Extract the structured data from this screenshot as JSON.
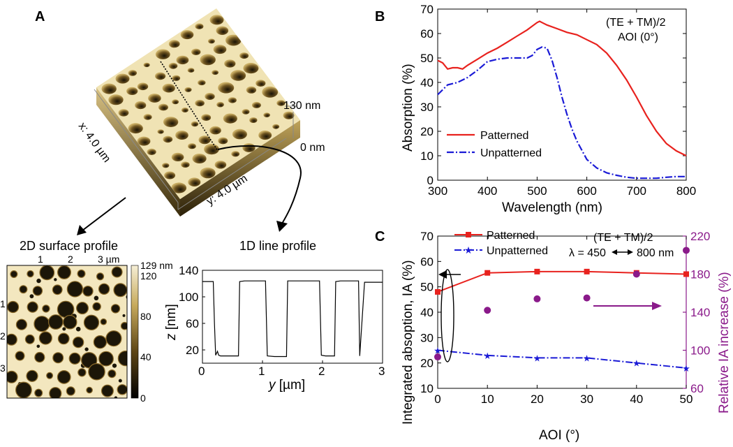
{
  "panel_a": {
    "label": "A",
    "afm_3d": {
      "x_label": "x: 4.0 µm",
      "y_label": "y: 4.0 µm",
      "z_top_label": "130 nm",
      "z_bottom_label": "0 nm"
    },
    "surface_2d": {
      "title": "2D surface profile",
      "top_ticks": [
        "1",
        "2",
        "3 µm"
      ],
      "left_ticks": [
        "1",
        "2",
        "3"
      ],
      "colorbar_ticks": [
        "129 nm",
        "120",
        "80",
        "40",
        "0"
      ]
    },
    "line_profile": {
      "title": "1D line profile",
      "xlabel_var": "y",
      "xlabel_unit": " [µm]",
      "ylabel_var": "z",
      "ylabel_unit": " [nm]",
      "xticks": [
        "0",
        "1",
        "2",
        "3"
      ],
      "yticks": [
        "140",
        "100",
        "60",
        "20"
      ]
    }
  },
  "panel_b": {
    "label": "B",
    "annotation_line1": "(TE + TM)/2",
    "annotation_line2": "AOI (0°)",
    "xlabel": "Wavelength (nm)",
    "ylabel": "Absorption (%)",
    "xticks": [
      "300",
      "400",
      "500",
      "600",
      "700",
      "800"
    ],
    "yticks": [
      "0",
      "10",
      "20",
      "30",
      "40",
      "50",
      "60",
      "70"
    ],
    "legend": [
      "Patterned",
      "Unpatterned"
    ]
  },
  "panel_c": {
    "label": "C",
    "annotation_line1": "(TE + TM)/2",
    "annotation_line2": "λ = 450",
    "annotation_line2b": "800 nm",
    "xlabel": "AOI (°)",
    "ylabel_left": "Integrated absoption, IA (%)",
    "ylabel_right": "Relative IA increase (%)",
    "xticks": [
      "0",
      "10",
      "20",
      "30",
      "40",
      "50"
    ],
    "yticks_left": [
      "10",
      "20",
      "30",
      "40",
      "50",
      "60",
      "70"
    ],
    "yticks_right": [
      "60",
      "100",
      "140",
      "180",
      "220"
    ],
    "legend": [
      "Patterned",
      "Unpatterned"
    ]
  },
  "colors": {
    "patterned": "#e8221e",
    "unpatterned": "#1a1ad6",
    "relative": "#8a1a8a",
    "afm_light": "#f4eccf",
    "afm_dark": "#1c1608"
  },
  "chart_data": [
    {
      "type": "line",
      "panel": "B",
      "xlabel": "Wavelength (nm)",
      "ylabel": "Absorption (%)",
      "xlim": [
        300,
        800
      ],
      "ylim": [
        0,
        70
      ],
      "grid": false,
      "legend_position": "lower-left",
      "series": [
        {
          "name": "Patterned",
          "color": "#e8221e",
          "style": "solid",
          "x": [
            300,
            310,
            320,
            330,
            340,
            350,
            360,
            380,
            400,
            420,
            440,
            460,
            480,
            490,
            500,
            505,
            510,
            520,
            540,
            560,
            580,
            600,
            620,
            640,
            660,
            680,
            700,
            720,
            740,
            760,
            780,
            800
          ],
          "y": [
            49,
            48,
            45.5,
            46,
            46,
            45.5,
            47,
            49.5,
            52,
            54,
            56.5,
            59,
            61.5,
            63,
            64.5,
            65,
            64.5,
            63.5,
            62,
            60.5,
            59.5,
            57.5,
            55.5,
            52,
            47,
            41,
            34,
            26.5,
            20,
            15,
            12,
            10
          ]
        },
        {
          "name": "Unpatterned",
          "color": "#1a1ad6",
          "style": "dashdot",
          "x": [
            300,
            310,
            320,
            340,
            360,
            380,
            400,
            420,
            440,
            460,
            480,
            490,
            500,
            510,
            520,
            530,
            540,
            550,
            560,
            570,
            580,
            600,
            620,
            640,
            660,
            680,
            700,
            720,
            740,
            760,
            780,
            800
          ],
          "y": [
            35,
            37,
            39,
            40,
            42,
            45,
            48.5,
            49.5,
            50,
            50,
            50,
            51,
            53.5,
            54.5,
            54,
            49,
            42,
            34,
            27,
            21,
            16,
            8.5,
            5,
            3,
            2,
            1.2,
            0.8,
            0.8,
            0.8,
            1.2,
            1.5,
            1.5
          ]
        }
      ]
    },
    {
      "type": "line",
      "panel": "C",
      "xlabel": "AOI (°)",
      "ylabel": "Integrated absoption, IA (%)",
      "ylabel_right": "Relative IA increase (%)",
      "xlim": [
        0,
        50
      ],
      "ylim": [
        10,
        70
      ],
      "ylim_right": [
        60,
        220
      ],
      "grid": false,
      "legend_position": "top-left",
      "series": [
        {
          "name": "Patterned",
          "color": "#e8221e",
          "marker": "square",
          "axis": "left",
          "x": [
            0,
            10,
            20,
            30,
            40,
            50
          ],
          "y": [
            48,
            55.5,
            56,
            56,
            55.5,
            55
          ]
        },
        {
          "name": "Unpatterned",
          "color": "#1a1ad6",
          "marker": "star",
          "axis": "left",
          "x": [
            0,
            10,
            20,
            30,
            40,
            50
          ],
          "y": [
            25,
            23,
            22,
            22,
            20,
            18
          ]
        },
        {
          "color": "#8a1a8a",
          "marker": "circle",
          "axis": "right",
          "x": [
            0,
            10,
            20,
            30,
            40,
            50
          ],
          "y": [
            93,
            142,
            154,
            155,
            180,
            205
          ]
        }
      ]
    },
    {
      "type": "line",
      "panel": "A-1D",
      "xlim": [
        0,
        3
      ],
      "ylim": [
        0,
        140
      ],
      "series": [
        {
          "color": "#000000",
          "x": [
            0,
            0.18,
            0.2,
            0.22,
            0.25,
            0.27,
            0.3,
            0.6,
            0.62,
            0.7,
            1.05,
            1.08,
            1.2,
            1.4,
            1.42,
            1.5,
            1.95,
            1.98,
            2.05,
            2.2,
            2.22,
            2.3,
            2.6,
            2.62,
            2.7,
            3.0
          ],
          "y": [
            123,
            123,
            60,
            12,
            18,
            12,
            11,
            11,
            123,
            124,
            124,
            11,
            10,
            10,
            124,
            124,
            124,
            12,
            11,
            11,
            123,
            124,
            124,
            11,
            122,
            122
          ]
        }
      ]
    }
  ]
}
